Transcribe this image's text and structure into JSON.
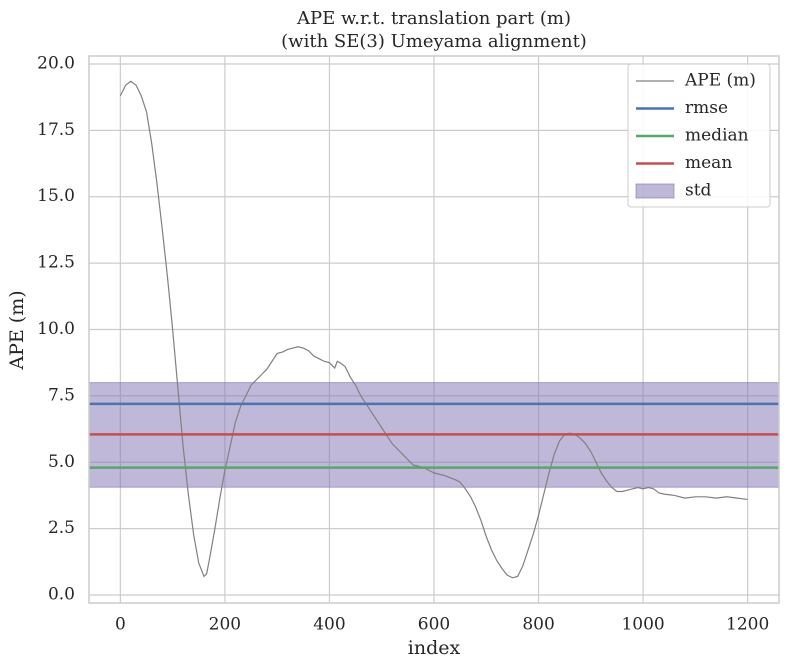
{
  "chart_data": {
    "type": "line",
    "title": "APE w.r.t. translation part (m)",
    "subtitle": "(with SE(3) Umeyama alignment)",
    "x_label": "index",
    "y_label": "APE (m)",
    "xlim": [
      -60,
      1260
    ],
    "ylim": [
      -0.3,
      20.3
    ],
    "xticks": [
      0,
      200,
      400,
      600,
      800,
      1000,
      1200
    ],
    "yticks": [
      {
        "value": 0,
        "label": "0.0"
      },
      2.5,
      {
        "value": 5,
        "label": "5.0"
      },
      7.5,
      {
        "value": 10,
        "label": "10.0"
      },
      12.5,
      {
        "value": 15,
        "label": "15.0"
      },
      17.5,
      {
        "value": 20,
        "label": "20.0"
      }
    ],
    "grid": true,
    "legend": "upper right",
    "series": [
      {
        "name": "APE (m)",
        "color": "#808080",
        "x": [
          0,
          10,
          20,
          30,
          40,
          50,
          60,
          70,
          80,
          90,
          100,
          110,
          120,
          130,
          140,
          150,
          160,
          165,
          170,
          180,
          190,
          200,
          210,
          220,
          230,
          240,
          250,
          260,
          270,
          280,
          290,
          300,
          310,
          320,
          330,
          340,
          350,
          360,
          370,
          380,
          390,
          400,
          410,
          415,
          420,
          430,
          440,
          450,
          460,
          470,
          480,
          490,
          500,
          510,
          520,
          530,
          540,
          550,
          560,
          570,
          580,
          590,
          600,
          620,
          640,
          650,
          660,
          670,
          680,
          690,
          700,
          710,
          720,
          730,
          740,
          750,
          760,
          770,
          780,
          790,
          800,
          810,
          820,
          830,
          840,
          850,
          860,
          870,
          880,
          890,
          900,
          910,
          920,
          930,
          940,
          950,
          960,
          970,
          980,
          990,
          1000,
          1010,
          1020,
          1030,
          1040,
          1060,
          1080,
          1100,
          1120,
          1140,
          1160,
          1180,
          1200
        ],
        "values": [
          18.8,
          19.2,
          19.35,
          19.2,
          18.8,
          18.2,
          17.0,
          15.5,
          13.8,
          12.0,
          10.0,
          7.8,
          5.6,
          3.8,
          2.3,
          1.2,
          0.7,
          0.8,
          1.3,
          2.4,
          3.6,
          4.7,
          5.6,
          6.5,
          7.1,
          7.5,
          7.9,
          8.1,
          8.3,
          8.5,
          8.8,
          9.1,
          9.15,
          9.25,
          9.3,
          9.35,
          9.3,
          9.2,
          9.0,
          8.9,
          8.8,
          8.75,
          8.55,
          8.8,
          8.75,
          8.6,
          8.2,
          7.9,
          7.5,
          7.2,
          6.9,
          6.6,
          6.3,
          6.0,
          5.7,
          5.5,
          5.3,
          5.1,
          4.9,
          4.85,
          4.8,
          4.7,
          4.6,
          4.5,
          4.35,
          4.25,
          4.0,
          3.7,
          3.3,
          2.8,
          2.2,
          1.7,
          1.3,
          1.0,
          0.75,
          0.65,
          0.7,
          1.1,
          1.7,
          2.3,
          3.0,
          3.8,
          4.6,
          5.3,
          5.8,
          6.05,
          6.1,
          6.05,
          5.9,
          5.7,
          5.4,
          5.0,
          4.6,
          4.3,
          4.05,
          3.9,
          3.9,
          3.95,
          4.0,
          4.05,
          4.0,
          4.05,
          4.0,
          3.85,
          3.8,
          3.75,
          3.65,
          3.7,
          3.7,
          3.65,
          3.7,
          3.65,
          3.6
        ]
      }
    ],
    "stats": [
      {
        "name": "rmse",
        "color": "#4c72b0",
        "value": 7.2
      },
      {
        "name": "median",
        "color": "#55a868",
        "value": 4.8
      },
      {
        "name": "mean",
        "color": "#c44e52",
        "value": 6.05
      }
    ],
    "std": {
      "name": "std",
      "color": "#8172b2",
      "lower": 4.06,
      "upper": 8.0
    }
  }
}
